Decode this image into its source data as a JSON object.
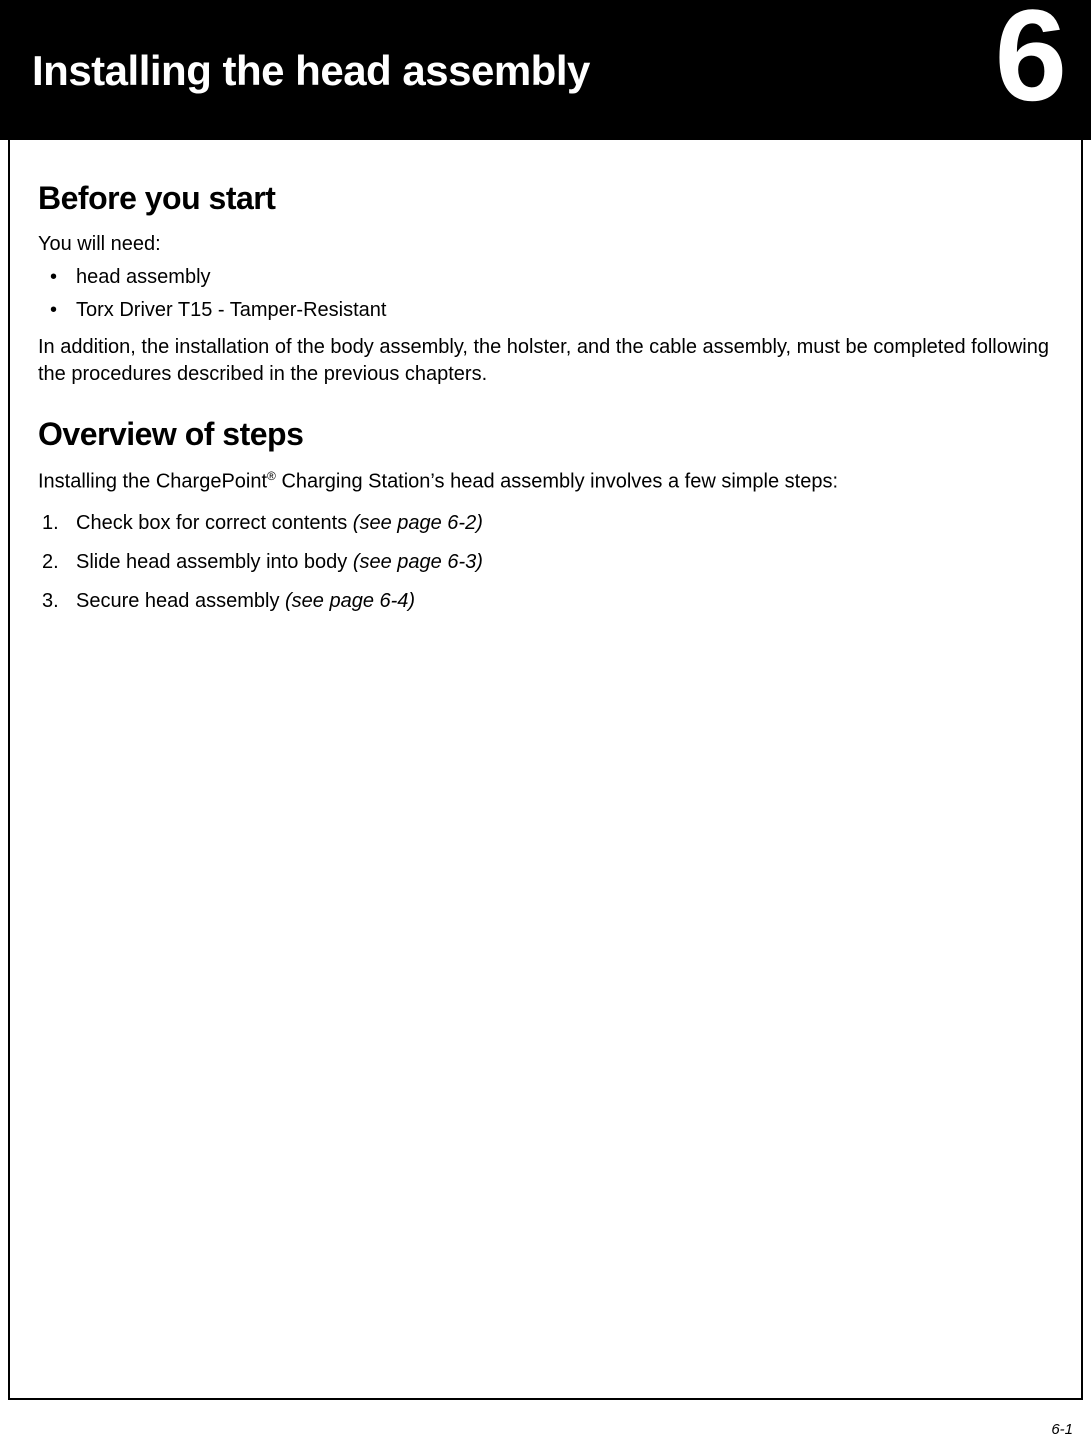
{
  "header": {
    "chapter_title": "Installing the head assembly",
    "chapter_number": "6"
  },
  "sections": {
    "before": {
      "heading": "Before you start",
      "lead": "You will need:",
      "bullets": [
        "head assembly",
        "Torx Driver T15 - Tamper-Resistant"
      ],
      "para": "In addition, the installation of the body assembly, the holster, and the cable assembly, must be completed following the procedures described in the previous chapters."
    },
    "overview": {
      "heading": "Overview of steps",
      "intro_pre": "Installing the ChargePoint",
      "intro_sup": "®",
      "intro_post": " Charging Station’s head assembly involves a few simple steps:",
      "steps": [
        {
          "text": "Check box for correct contents ",
          "ref": "(see page 6-2)"
        },
        {
          "text": "Slide head assembly into body ",
          "ref": "(see page 6-3)"
        },
        {
          "text": "Secure head assembly ",
          "ref": "(see page 6-4)"
        }
      ]
    }
  },
  "footer": {
    "page_number": "6-1"
  },
  "styles": {
    "header_bg": "#000000",
    "header_fg": "#ffffff",
    "body_text": "#000000",
    "chapter_title_fontsize": 42,
    "chapter_number_fontsize": 130,
    "section_heading_fontsize": 32,
    "body_fontsize": 20,
    "page_number_fontsize": 15,
    "content_border_width": 2,
    "content_border_color": "#000000"
  }
}
